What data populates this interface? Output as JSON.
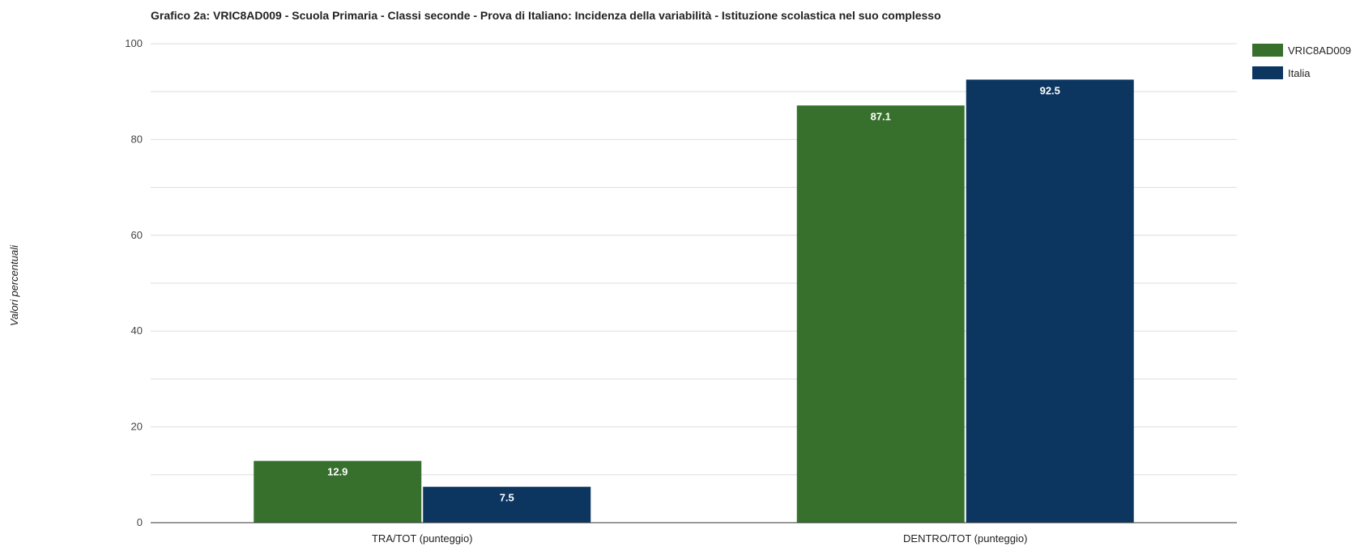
{
  "chart_data": {
    "type": "bar",
    "title": "Grafico 2a: VRIC8AD009 - Scuola Primaria - Classi seconde - Prova di Italiano: Incidenza della variabilità - Istituzione scolastica nel suo complesso",
    "xlabel": "",
    "ylabel": "Valori percentuali",
    "ylim": [
      0,
      100
    ],
    "yticks": [
      0,
      20,
      40,
      60,
      80,
      100
    ],
    "grid": true,
    "legend_position": "top-right",
    "categories": [
      "TRA/TOT (punteggio)",
      "DENTRO/TOT (punteggio)"
    ],
    "series": [
      {
        "name": "VRIC8AD009",
        "color": "#37702c",
        "values": [
          12.9,
          87.1
        ]
      },
      {
        "name": "Italia",
        "color": "#0c3660",
        "values": [
          7.5,
          92.5
        ]
      }
    ]
  }
}
